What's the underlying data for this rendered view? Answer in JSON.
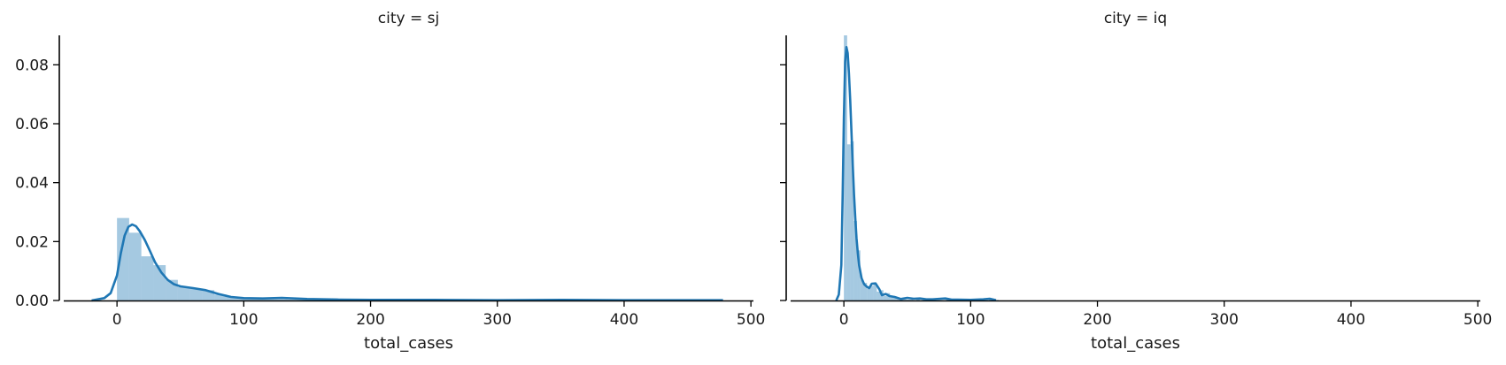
{
  "chart_data": [
    {
      "type": "histogram+kde",
      "facet_title": "city = sj",
      "xlabel": "total_cases",
      "ylabel": "",
      "xlim": [
        -42,
        502
      ],
      "ylim": [
        0,
        0.09
      ],
      "xticks": [
        0,
        100,
        200,
        300,
        400,
        500
      ],
      "xtick_labels": [
        "0",
        "100",
        "200",
        "300",
        "400",
        "500"
      ],
      "yticks": [
        0.0,
        0.02,
        0.04,
        0.06,
        0.08
      ],
      "ytick_labels": [
        "0.00",
        "0.02",
        "0.04",
        "0.06",
        "0.08"
      ],
      "bar_width": 9.6,
      "bins": [
        {
          "x": 0,
          "height": 0.028
        },
        {
          "x": 9.6,
          "height": 0.023
        },
        {
          "x": 19.2,
          "height": 0.015
        },
        {
          "x": 28.8,
          "height": 0.012
        },
        {
          "x": 38.4,
          "height": 0.007
        },
        {
          "x": 48,
          "height": 0.0045
        },
        {
          "x": 57.6,
          "height": 0.004
        },
        {
          "x": 67.2,
          "height": 0.0035
        },
        {
          "x": 76.8,
          "height": 0.002
        },
        {
          "x": 86.4,
          "height": 0.0012
        },
        {
          "x": 96,
          "height": 0.0008
        },
        {
          "x": 105.6,
          "height": 0.0006
        },
        {
          "x": 115.2,
          "height": 0.0005
        },
        {
          "x": 124.8,
          "height": 0.0005
        },
        {
          "x": 134.4,
          "height": 0.0004
        },
        {
          "x": 144,
          "height": 0.0003
        },
        {
          "x": 153.6,
          "height": 0.0002
        },
        {
          "x": 163.2,
          "height": 0.0002
        },
        {
          "x": 172.8,
          "height": 0.0002
        },
        {
          "x": 182.4,
          "height": 0.0001
        },
        {
          "x": 192,
          "height": 0.0001
        },
        {
          "x": 201.6,
          "height": 0.0001
        },
        {
          "x": 211.2,
          "height": 0.0001
        }
      ],
      "kde": {
        "x": [
          -20,
          -10,
          -5,
          0,
          3,
          6,
          9,
          12,
          15,
          18,
          22,
          26,
          30,
          35,
          40,
          45,
          50,
          60,
          70,
          80,
          90,
          100,
          115,
          130,
          150,
          175,
          200,
          250,
          300,
          350,
          400,
          450,
          478
        ],
        "y": [
          0.0,
          0.0008,
          0.0025,
          0.0085,
          0.016,
          0.022,
          0.025,
          0.0258,
          0.0252,
          0.0235,
          0.0205,
          0.0168,
          0.013,
          0.0095,
          0.007,
          0.0055,
          0.0048,
          0.0042,
          0.0035,
          0.0022,
          0.0012,
          0.0008,
          0.0007,
          0.0009,
          0.0005,
          0.0003,
          0.0002,
          0.0002,
          0.0001,
          0.0002,
          0.0001,
          0.0001,
          0.0001
        ]
      }
    },
    {
      "type": "histogram+kde",
      "facet_title": "city = iq",
      "xlabel": "total_cases",
      "ylabel": "",
      "xlim": [
        -42,
        502
      ],
      "ylim": [
        0,
        0.09
      ],
      "xticks": [
        0,
        100,
        200,
        300,
        400,
        500
      ],
      "xtick_labels": [
        "0",
        "100",
        "200",
        "300",
        "400",
        "500"
      ],
      "yticks": [
        0.0,
        0.02,
        0.04,
        0.06,
        0.08
      ],
      "ytick_labels": [
        "",
        "",
        "",
        "",
        ""
      ],
      "bar_width": 2.6,
      "bins": [
        {
          "x": 0,
          "height": 0.09
        },
        {
          "x": 2.6,
          "height": 0.053
        },
        {
          "x": 5.2,
          "height": 0.054
        },
        {
          "x": 7.8,
          "height": 0.027
        },
        {
          "x": 10.4,
          "height": 0.017
        },
        {
          "x": 13,
          "height": 0.007
        },
        {
          "x": 15.6,
          "height": 0.006
        },
        {
          "x": 18.2,
          "height": 0.004
        },
        {
          "x": 20.8,
          "height": 0.005
        },
        {
          "x": 23.4,
          "height": 0.0055
        },
        {
          "x": 26,
          "height": 0.003
        },
        {
          "x": 28.6,
          "height": 0.0035
        },
        {
          "x": 31.2,
          "height": 0.0015
        },
        {
          "x": 33.8,
          "height": 0.0025
        },
        {
          "x": 36.4,
          "height": 0.0015
        },
        {
          "x": 39,
          "height": 0.0012
        },
        {
          "x": 41.6,
          "height": 0.0008
        },
        {
          "x": 44.2,
          "height": 0.0006
        },
        {
          "x": 46.8,
          "height": 0.0004
        },
        {
          "x": 49.4,
          "height": 0.0003
        },
        {
          "x": 52,
          "height": 0.0003
        },
        {
          "x": 57.2,
          "height": 0.0006
        },
        {
          "x": 62.4,
          "height": 0.0004
        },
        {
          "x": 70.2,
          "height": 0.0003
        },
        {
          "x": 80.6,
          "height": 0.0005
        },
        {
          "x": 91,
          "height": 0.0003
        },
        {
          "x": 104,
          "height": 0.0002
        },
        {
          "x": 114.4,
          "height": 0.0005
        },
        {
          "x": 119.6,
          "height": 0.0002
        }
      ],
      "kde": {
        "x": [
          -6,
          -4,
          -2,
          -1,
          0,
          1,
          2,
          3,
          4,
          5,
          6,
          7,
          8,
          9,
          10,
          11,
          12,
          14,
          16,
          18,
          20,
          22,
          25,
          28,
          30,
          33,
          36,
          40,
          45,
          50,
          55,
          60,
          65,
          70,
          80,
          85,
          90,
          100,
          110,
          115,
          120
        ],
        "y": [
          0.0,
          0.002,
          0.012,
          0.035,
          0.062,
          0.081,
          0.086,
          0.084,
          0.077,
          0.068,
          0.057,
          0.046,
          0.036,
          0.028,
          0.021,
          0.016,
          0.012,
          0.0075,
          0.0055,
          0.0047,
          0.0042,
          0.0057,
          0.0058,
          0.0038,
          0.0018,
          0.0022,
          0.0015,
          0.0012,
          0.0005,
          0.0009,
          0.0006,
          0.0007,
          0.0004,
          0.0004,
          0.0007,
          0.0003,
          0.0003,
          0.0002,
          0.0004,
          0.0006,
          0.0001
        ]
      }
    }
  ]
}
